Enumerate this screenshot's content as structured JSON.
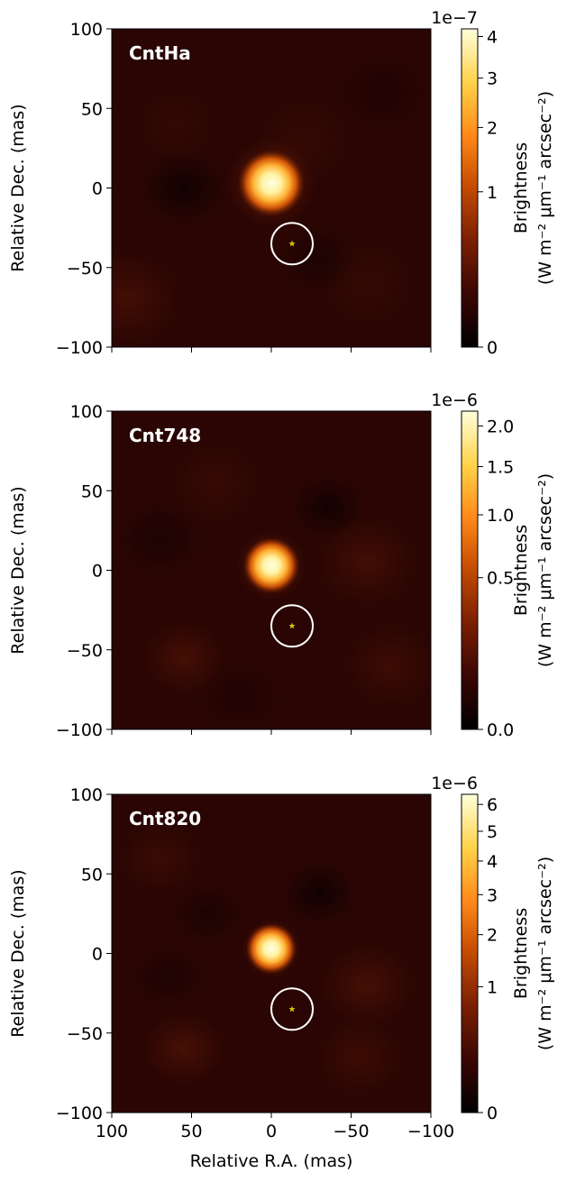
{
  "figure": {
    "xlabel": "Relative R.A. (mas)",
    "ylabel": "Relative Dec. (mas)",
    "colorbar_label_line1": "Brightness",
    "colorbar_label_line2": "(W m⁻² μm⁻¹ arcsec⁻²)"
  },
  "colors": {
    "star_marker": "#d4c20a",
    "circle": "#ffffff",
    "panel_title": "#ffffff",
    "colormap": [
      "#000000",
      "#3a0603",
      "#7a1f02",
      "#c24a00",
      "#ff8a1a",
      "#ffd34a",
      "#ffffdc"
    ]
  },
  "chart_data": [
    {
      "type": "heatmap",
      "title": "CntHa",
      "xlabel": "",
      "ylabel": "Relative Dec. (mas)",
      "xlim": [
        100,
        -100
      ],
      "ylim": [
        -100,
        100
      ],
      "x_ticks": [
        100,
        50,
        0,
        -50,
        -100
      ],
      "x_ticklabels_shown": false,
      "y_ticks": [
        100,
        50,
        0,
        -50,
        -100
      ],
      "y_ticklabels": [
        "100",
        "50",
        "0",
        "−50",
        "−100"
      ],
      "source": {
        "x": 0,
        "y": 3,
        "peak": 4.2e-07
      },
      "companion": {
        "x": -13,
        "y": -35,
        "marker": "star",
        "circle_radius_mas": 13
      },
      "colorbar": {
        "scale_exponent": "1e−7",
        "max": 4.2,
        "ticks": [
          0,
          1,
          2,
          3,
          4
        ],
        "ticklabels": [
          "0",
          "1",
          "2",
          "3",
          "4"
        ],
        "scale": "power (sqrt-like stretch)"
      }
    },
    {
      "type": "heatmap",
      "title": "Cnt748",
      "xlabel": "",
      "ylabel": "Relative Dec. (mas)",
      "xlim": [
        100,
        -100
      ],
      "ylim": [
        -100,
        100
      ],
      "x_ticks": [
        100,
        50,
        0,
        -50,
        -100
      ],
      "x_ticklabels_shown": false,
      "y_ticks": [
        100,
        50,
        0,
        -50,
        -100
      ],
      "y_ticklabels": [
        "100",
        "50",
        "0",
        "−50",
        "−100"
      ],
      "source": {
        "x": 0,
        "y": 3,
        "peak": 2.2e-06
      },
      "companion": {
        "x": -13,
        "y": -35,
        "marker": "star",
        "circle_radius_mas": 13
      },
      "colorbar": {
        "scale_exponent": "1e−6",
        "max": 2.2,
        "ticks": [
          0.0,
          0.5,
          1.0,
          1.5,
          2.0
        ],
        "ticklabels": [
          "0.0",
          "0.5",
          "1.0",
          "1.5",
          "2.0"
        ],
        "scale": "power (sqrt-like stretch)"
      }
    },
    {
      "type": "heatmap",
      "title": "Cnt820",
      "xlabel": "Relative R.A. (mas)",
      "ylabel": "Relative Dec. (mas)",
      "xlim": [
        100,
        -100
      ],
      "ylim": [
        -100,
        100
      ],
      "x_ticks": [
        100,
        50,
        0,
        -50,
        -100
      ],
      "x_ticklabels": [
        "100",
        "50",
        "0",
        "−50",
        "−100"
      ],
      "x_ticklabels_shown": true,
      "y_ticks": [
        100,
        50,
        0,
        -50,
        -100
      ],
      "y_ticklabels": [
        "100",
        "50",
        "0",
        "−50",
        "−100"
      ],
      "source": {
        "x": 0,
        "y": 3,
        "peak": 6.4e-06
      },
      "companion": {
        "x": -13,
        "y": -35,
        "marker": "star",
        "circle_radius_mas": 13
      },
      "colorbar": {
        "scale_exponent": "1e−6",
        "max": 6.4,
        "ticks": [
          0,
          1,
          2,
          3,
          4,
          5,
          6
        ],
        "ticklabels": [
          "0",
          "1",
          "2",
          "3",
          "4",
          "5",
          "6"
        ],
        "scale": "power (sqrt-like stretch)"
      }
    }
  ]
}
